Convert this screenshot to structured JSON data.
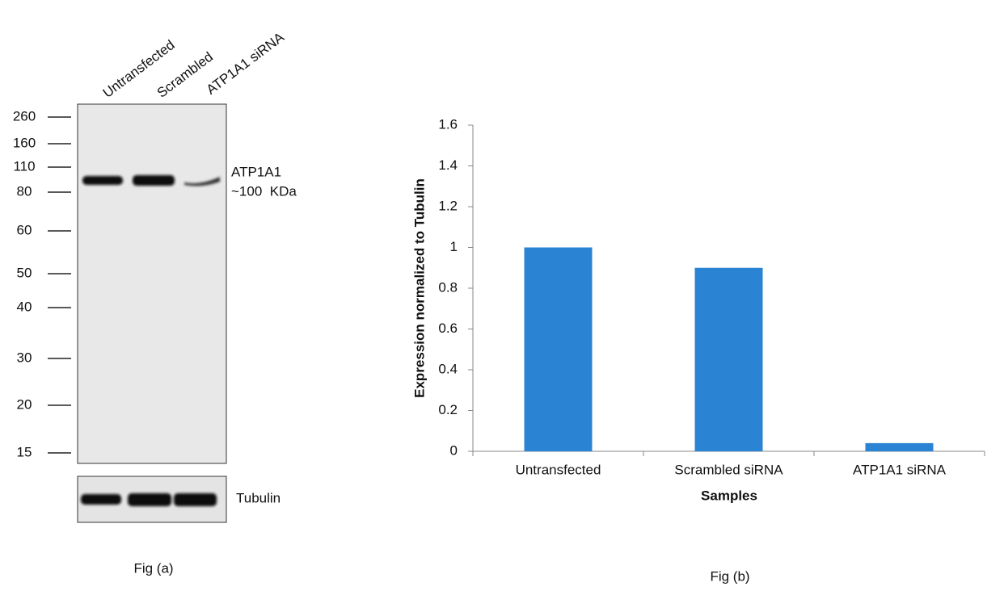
{
  "blot": {
    "lanes": [
      "Untransfected",
      "Scrambled",
      "ATP1A1 siRNA"
    ],
    "markers": [
      260,
      160,
      110,
      80,
      60,
      50,
      40,
      30,
      20,
      15
    ],
    "band_label": "ATP1A1",
    "band_size": "~100  KDa",
    "loading_control": "Tubulin",
    "caption": "Fig (a)"
  },
  "chart_data": {
    "type": "bar",
    "categories": [
      "Untransfected",
      "Scrambled siRNA",
      "ATP1A1 siRNA"
    ],
    "values": [
      1,
      0.9,
      0.04
    ],
    "color": "#2b83d3",
    "x_label": "Samples",
    "y_label": "Expression normalized to Tubulin",
    "ylim": [
      0,
      1.6
    ],
    "yticks": [
      0,
      0.2,
      0.4,
      0.6,
      0.8,
      1,
      1.2,
      1.4,
      1.6
    ],
    "grid": false,
    "caption": "Fig (b)"
  }
}
